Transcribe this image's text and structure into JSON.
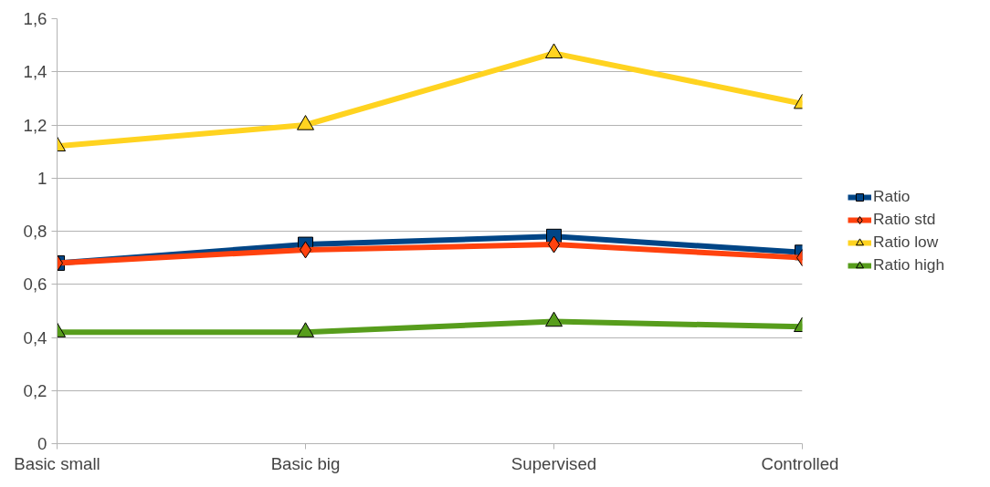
{
  "chart_data": {
    "type": "line",
    "categories": [
      "Basic small",
      "Basic big",
      "Supervised",
      "Controlled"
    ],
    "series": [
      {
        "name": "Ratio",
        "color": "#004586",
        "marker": "square",
        "values": [
          0.68,
          0.75,
          0.78,
          0.72
        ]
      },
      {
        "name": "Ratio std",
        "color": "#ff420e",
        "marker": "diamond",
        "values": [
          0.68,
          0.73,
          0.75,
          0.7
        ]
      },
      {
        "name": "Ratio low",
        "color": "#ffd320",
        "marker": "triangle",
        "values": [
          1.12,
          1.2,
          1.47,
          1.28
        ]
      },
      {
        "name": "Ratio high",
        "color": "#579d1c",
        "marker": "triangle",
        "values": [
          0.42,
          0.42,
          0.46,
          0.44
        ]
      }
    ],
    "ylim": [
      0,
      1.6
    ],
    "yticks": [
      0,
      {
        "value": 0.2,
        "label": "0,2"
      },
      {
        "value": 0.4,
        "label": "0,4"
      },
      {
        "value": 0.6,
        "label": "0,6"
      },
      {
        "value": 0.8,
        "label": "0,8"
      },
      1,
      {
        "value": 1.2,
        "label": "1,2"
      },
      {
        "value": 1.4,
        "label": "1,4"
      },
      {
        "value": 1.6,
        "label": "1,6"
      }
    ],
    "grid": "y",
    "legend": "right",
    "line_style": "solid"
  }
}
